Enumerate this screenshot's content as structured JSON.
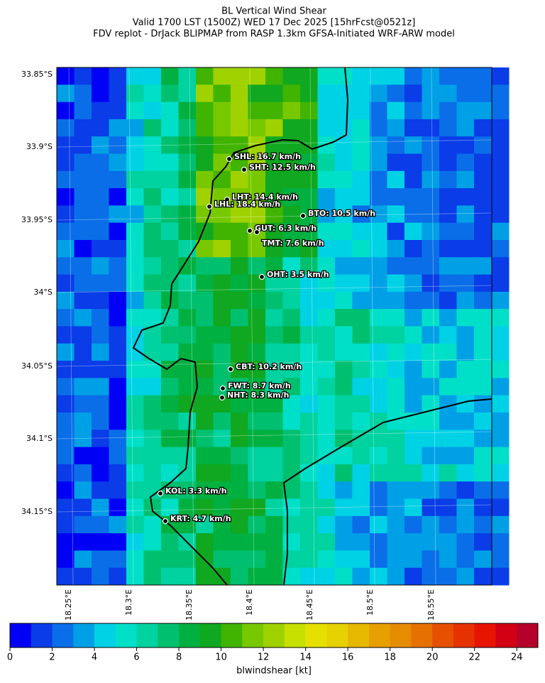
{
  "title_lines": [
    "BL Vertical Wind Shear",
    "Valid 1700 LST (1500Z) WED 17 Dec 2025 [15hrFcst@0521z]",
    "FDV replot - DrJack BLIPMAP from RASP 1.3km GFSA-Initiated WRF-ARW model"
  ],
  "lat_labels": [
    "33.85°S",
    "33.9°S",
    "33.95°S",
    "34°S",
    "34.05°S",
    "34.1°S",
    "34.15°S"
  ],
  "lon_labels": [
    "18.25°E",
    "18.3°E",
    "18.35°E",
    "18.4°E",
    "18.45°E",
    "18.5°E",
    "18.55°E"
  ],
  "stations": [
    "SHL: 16.7 km/h",
    "SHT: 12.5 km/h",
    "LHT: 14.4 km/h",
    "LHL: 18.4 km/h",
    "BTO: 10.5 km/h",
    "GUT: 6.3 km/h",
    "TMT: 7.6 km/h",
    "OHT: 3.5 km/h",
    "CBT: 10.2 km/h",
    "FWT: 8.7 km/h",
    "NHT: 8.3 km/h",
    "KOL: 3.3 km/h",
    "KRT: 4.7 km/h"
  ],
  "colorbar": {
    "label": "blwindshear [kt]",
    "lim": [
      0,
      25
    ],
    "ticks": [
      0,
      2,
      4,
      6,
      8,
      10,
      12,
      14,
      16,
      18,
      20,
      22,
      24
    ],
    "colors": [
      "#0000f5",
      "#0a3ce8",
      "#0a6ee8",
      "#00a0e6",
      "#00d2e6",
      "#00e0c8",
      "#00d2a0",
      "#00c070",
      "#00b040",
      "#10a820",
      "#40b400",
      "#78c800",
      "#a0d200",
      "#c8e000",
      "#e6e000",
      "#e6d200",
      "#e6b900",
      "#e6a000",
      "#e68c00",
      "#e67000",
      "#e65000",
      "#e63200",
      "#e61400",
      "#d20014",
      "#b4002a"
    ]
  }
}
